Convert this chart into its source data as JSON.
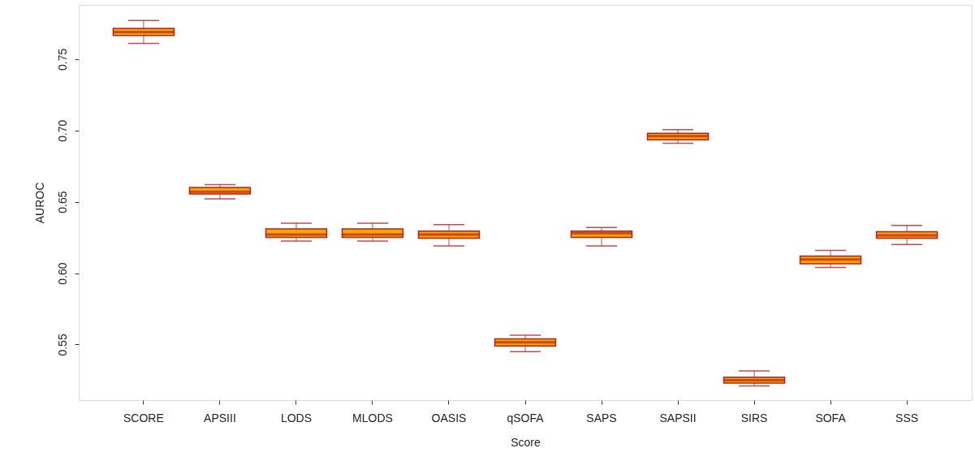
{
  "chart_data": {
    "type": "box",
    "xlabel": "Score",
    "ylabel": "AUROC",
    "categories": [
      "SCORE",
      "APSIII",
      "LODS",
      "MLODS",
      "OASIS",
      "qSOFA",
      "SAPS",
      "SAPSII",
      "SIRS",
      "SOFA",
      "SSS"
    ],
    "ylim": [
      0.511,
      0.788
    ],
    "yticks": [
      {
        "value": 0.55,
        "label": "0.55"
      },
      {
        "value": 0.6,
        "label": "0.60"
      },
      {
        "value": 0.65,
        "label": "0.65"
      },
      {
        "value": 0.7,
        "label": "0.70"
      },
      {
        "value": 0.75,
        "label": "0.75"
      }
    ],
    "grid": false,
    "series": [
      {
        "color": "#ffa500",
        "boxes": [
          {
            "low": 0.761,
            "q1": 0.7665,
            "median": 0.769,
            "q3": 0.7715,
            "high": 0.777
          },
          {
            "low": 0.652,
            "q1": 0.6555,
            "median": 0.657,
            "q3": 0.66,
            "high": 0.662
          },
          {
            "low": 0.6225,
            "q1": 0.625,
            "median": 0.627,
            "q3": 0.631,
            "high": 0.635
          },
          {
            "low": 0.6225,
            "q1": 0.625,
            "median": 0.627,
            "q3": 0.631,
            "high": 0.635
          },
          {
            "low": 0.619,
            "q1": 0.6245,
            "median": 0.627,
            "q3": 0.6295,
            "high": 0.634
          },
          {
            "low": 0.545,
            "q1": 0.549,
            "median": 0.5515,
            "q3": 0.554,
            "high": 0.5565
          },
          {
            "low": 0.619,
            "q1": 0.625,
            "median": 0.628,
            "q3": 0.6295,
            "high": 0.632
          },
          {
            "low": 0.691,
            "q1": 0.6935,
            "median": 0.696,
            "q3": 0.698,
            "high": 0.7005
          },
          {
            "low": 0.521,
            "q1": 0.523,
            "median": 0.525,
            "q3": 0.527,
            "high": 0.5315
          },
          {
            "low": 0.604,
            "q1": 0.6065,
            "median": 0.6095,
            "q3": 0.612,
            "high": 0.616
          },
          {
            "low": 0.62,
            "q1": 0.6245,
            "median": 0.6265,
            "q3": 0.629,
            "high": 0.6335
          }
        ]
      }
    ]
  }
}
